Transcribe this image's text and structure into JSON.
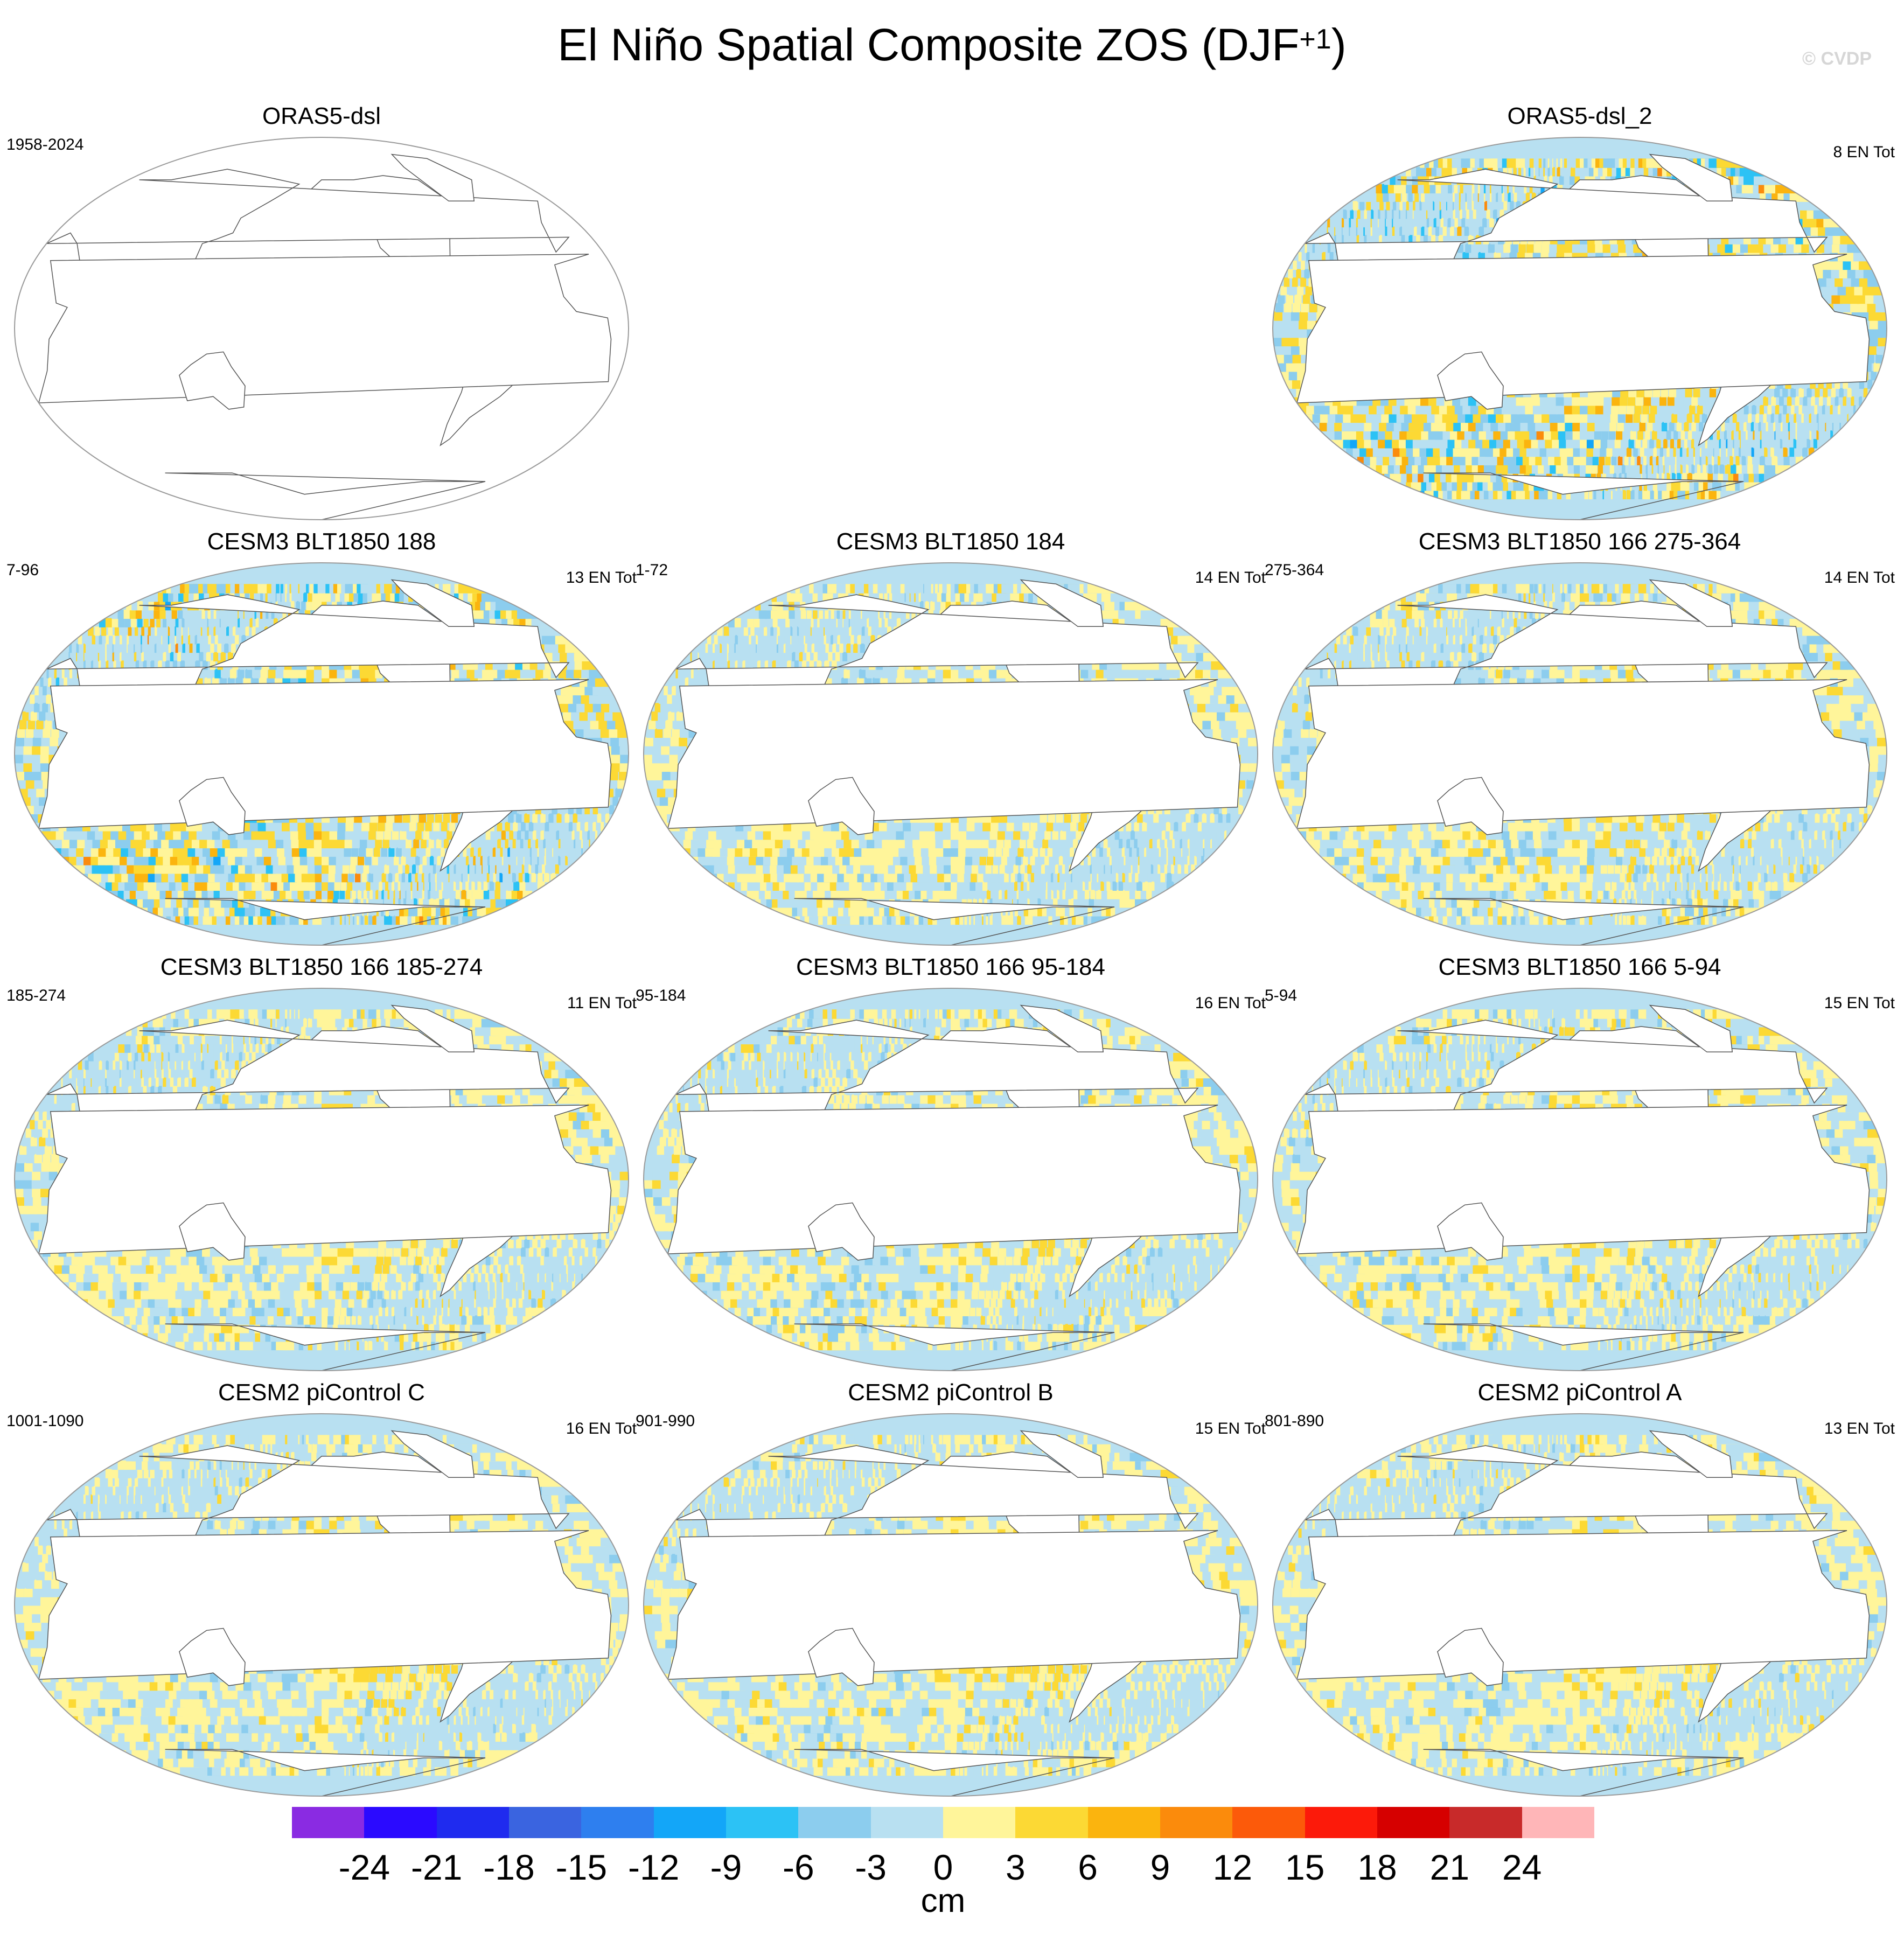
{
  "figure": {
    "title": "El Niño Spatial Composite ZOS (DJF",
    "title_sup": "+1",
    "title_close": ")",
    "watermark": "© CVDP"
  },
  "panels": [
    {
      "title": "ORAS5-dsl",
      "years": "1958-2024",
      "en_count": "",
      "filled": false
    },
    {
      "title": "ORAS5-dsl_2",
      "years": "",
      "en_count": "8 EN Tot",
      "filled": true,
      "enso": 1.0,
      "noise": 0.9
    },
    {
      "title": "CESM3 BLT1850 188",
      "years": "7-96",
      "en_count": "13 EN Tot",
      "filled": true,
      "enso": 0.6,
      "noise": 0.9
    },
    {
      "title": "CESM3 BLT1850 184",
      "years": "1-72",
      "en_count": "14 EN Tot",
      "filled": true,
      "enso": 0.5,
      "noise": 0.3
    },
    {
      "title": "CESM3 BLT1850 166 275-364",
      "years": "275-364",
      "en_count": "14 EN Tot",
      "filled": true,
      "enso": 0.6,
      "noise": 0.4
    },
    {
      "title": "CESM3 BLT1850 166 185-274",
      "years": "185-274",
      "en_count": "11 EN Tot",
      "filled": true,
      "enso": 0.5,
      "noise": 0.3
    },
    {
      "title": "CESM3 BLT1850 166 95-184",
      "years": "95-184",
      "en_count": "16 EN Tot",
      "filled": true,
      "enso": 0.5,
      "noise": 0.3
    },
    {
      "title": "CESM3 BLT1850 166 5-94",
      "years": "5-94",
      "en_count": "15 EN Tot",
      "filled": true,
      "enso": 0.5,
      "noise": 0.3
    },
    {
      "title": "CESM2 piControl C",
      "years": "1001-1090",
      "en_count": "16 EN Tot",
      "filled": true,
      "enso": 1.0,
      "noise": 0.2
    },
    {
      "title": "CESM2 piControl B",
      "years": "901-990",
      "en_count": "15 EN Tot",
      "filled": true,
      "enso": 0.95,
      "noise": 0.2
    },
    {
      "title": "CESM2 piControl A",
      "years": "801-890",
      "en_count": "13 EN Tot",
      "filled": true,
      "enso": 0.95,
      "noise": 0.2
    }
  ],
  "colorbar": {
    "unit": "cm",
    "labels": [
      "-24",
      "-21",
      "-18",
      "-15",
      "-12",
      "-9",
      "-6",
      "-3",
      "0",
      "3",
      "6",
      "9",
      "12",
      "15",
      "18",
      "21",
      "24"
    ],
    "colors": [
      "#8a2be2",
      "#2b0aff",
      "#1f2bef",
      "#3a64e0",
      "#2e7fef",
      "#13a6f8",
      "#2cc2f5",
      "#8ccdee",
      "#b8e0f1",
      "#fff59a",
      "#fcd934",
      "#fbb40e",
      "#fb8b0c",
      "#fc5a0a",
      "#fc1a0a",
      "#d60000",
      "#c82a2a",
      "#ffb6b8"
    ]
  }
}
